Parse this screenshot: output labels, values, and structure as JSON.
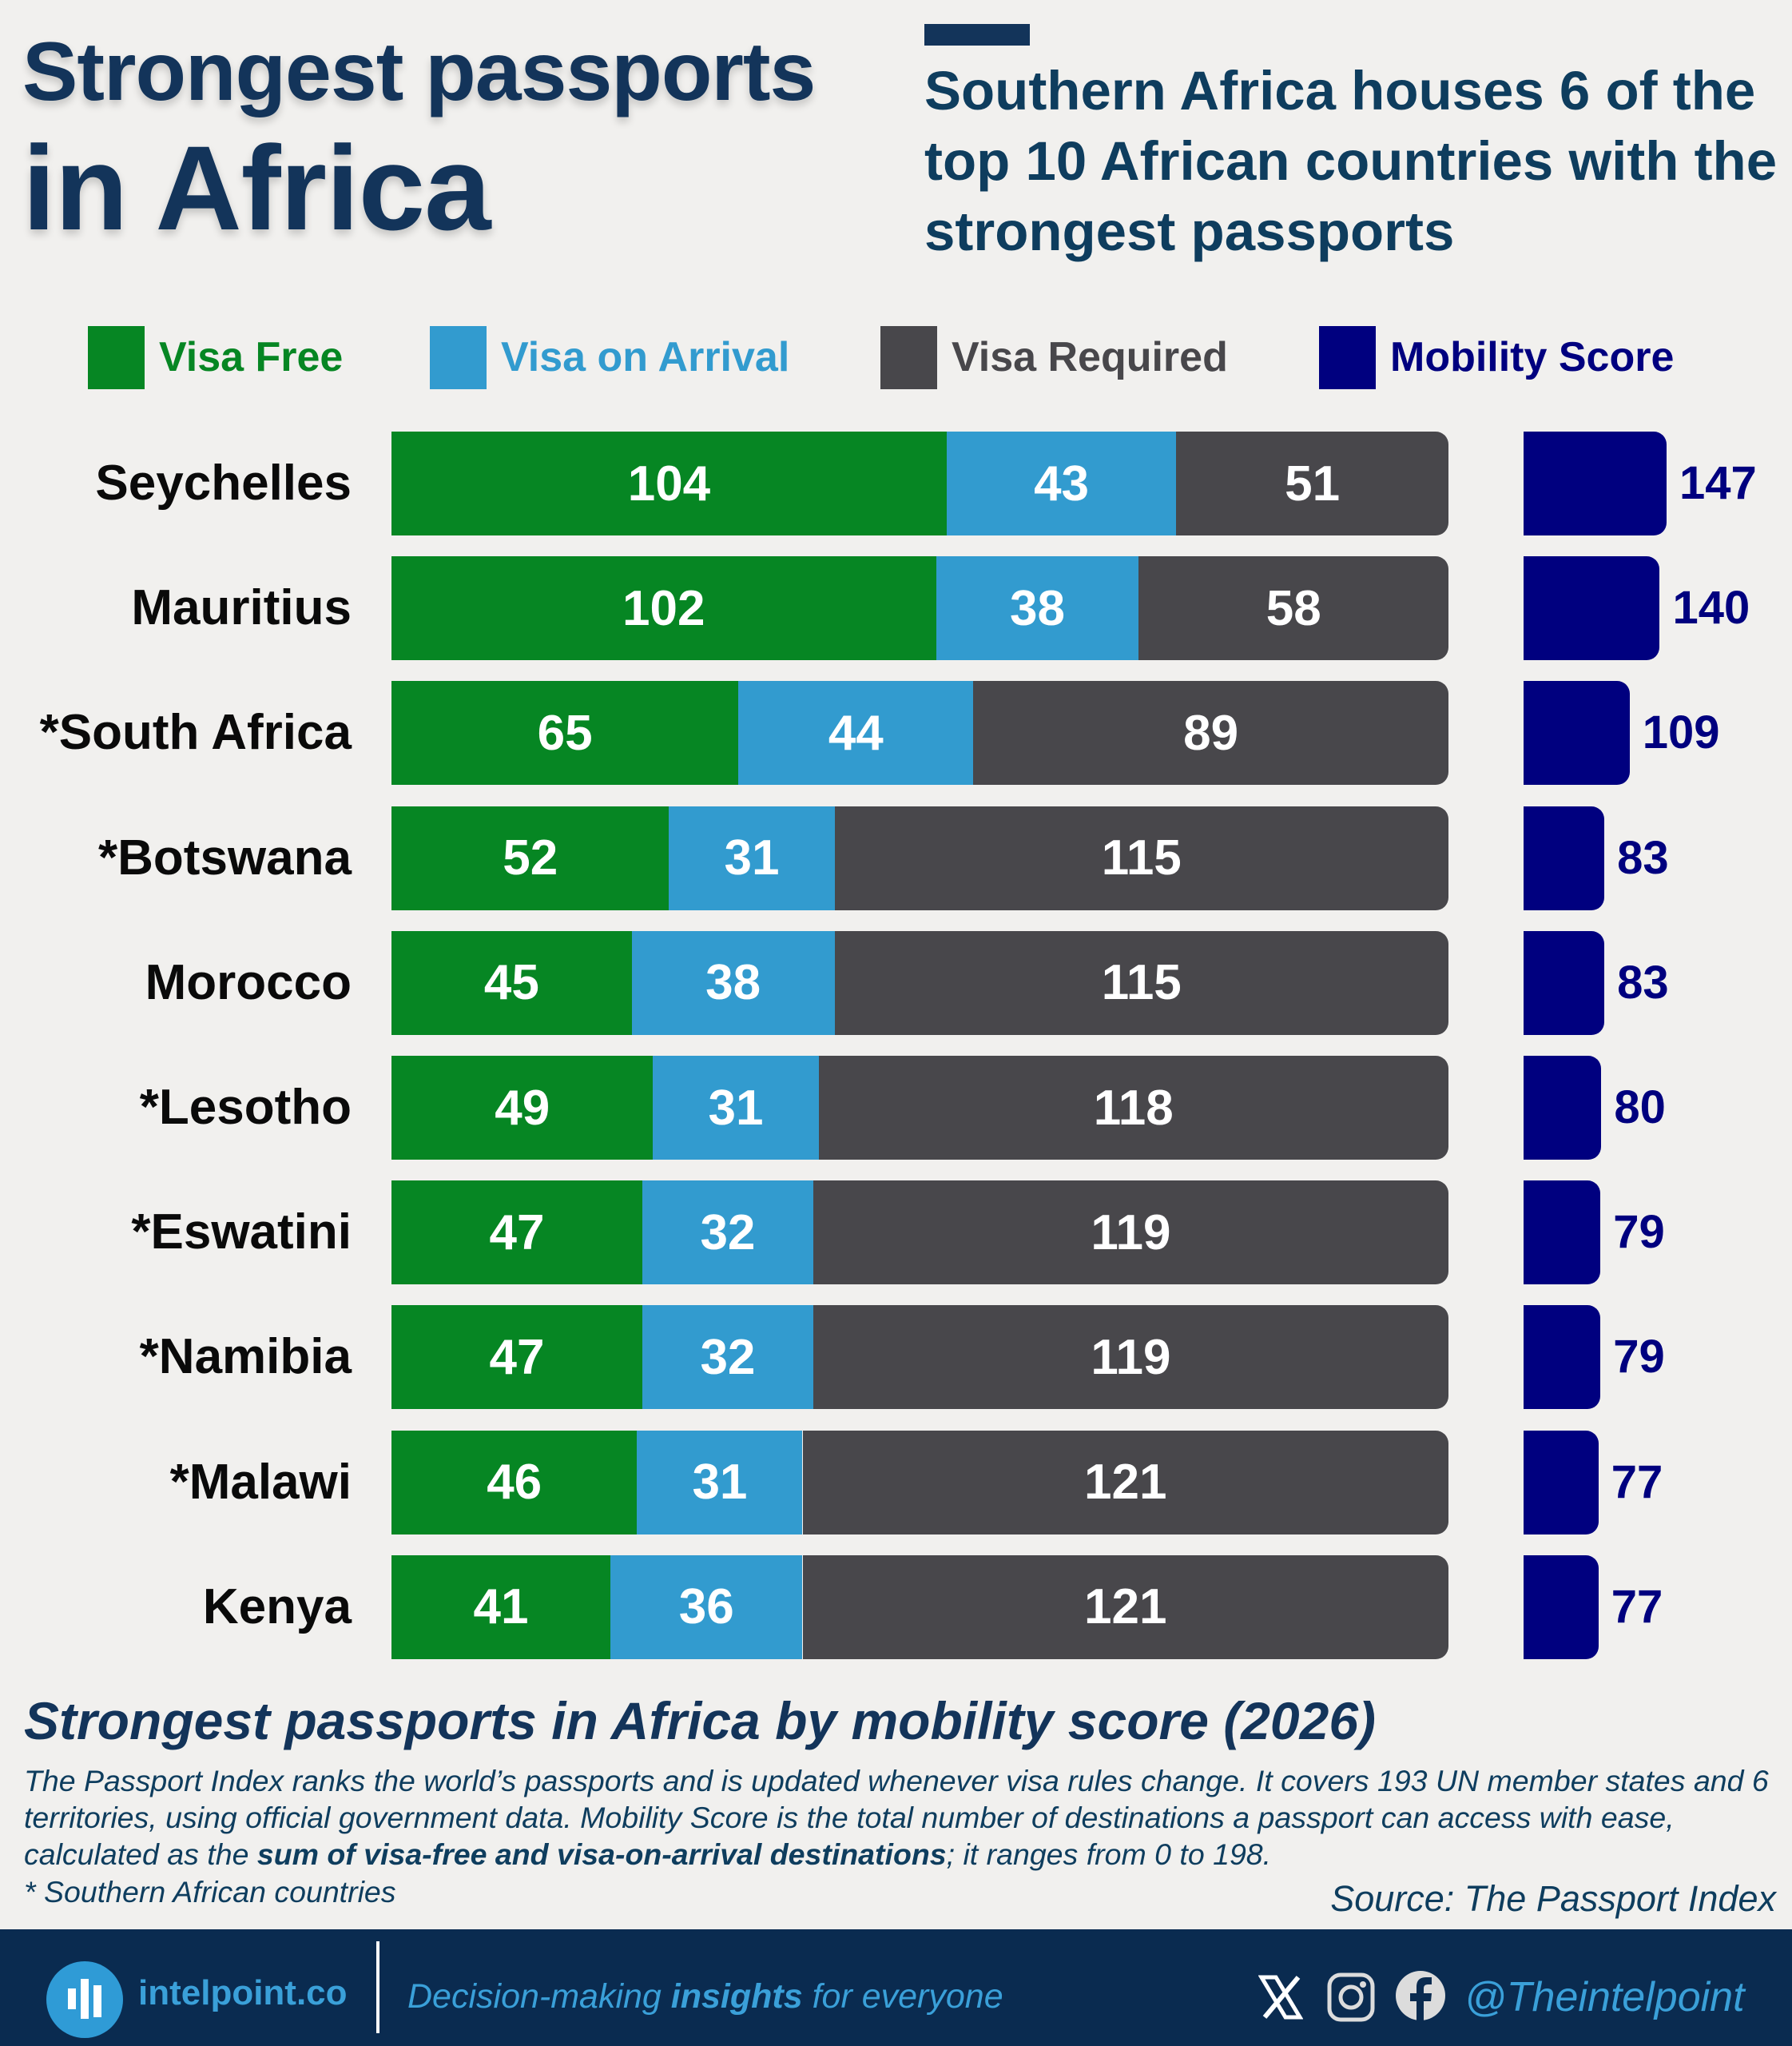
{
  "header": {
    "title_line1": "Strongest passports",
    "title_line2": "in Africa",
    "subtitle": "Southern Africa houses 6 of the top 10 African countries with the strongest passports"
  },
  "legend": [
    {
      "label": "Visa Free",
      "color": "#068623",
      "text_color": "#068623"
    },
    {
      "label": "Visa on Arrival",
      "color": "#329bcf",
      "text_color": "#329bcf"
    },
    {
      "label": "Visa Required",
      "color": "#48474b",
      "text_color": "#48474b"
    },
    {
      "label": "Mobility Score",
      "color": "#00007f",
      "text_color": "#00007f"
    }
  ],
  "chart_data": {
    "type": "bar",
    "orientation": "horizontal",
    "stacked": true,
    "title": "Strongest passports in Africa by mobility score (2026)",
    "categories": [
      "Seychelles",
      "Mauritius",
      "*South Africa",
      "*Botswana",
      "Morocco",
      "*Lesotho",
      "*Eswatini",
      "*Namibia",
      "*Malawi",
      "Kenya"
    ],
    "series": [
      {
        "name": "Visa Free",
        "color": "#068623",
        "values": [
          104,
          102,
          65,
          52,
          45,
          49,
          47,
          47,
          46,
          41
        ]
      },
      {
        "name": "Visa on Arrival",
        "color": "#329bcf",
        "values": [
          43,
          38,
          44,
          31,
          38,
          31,
          32,
          32,
          31,
          36
        ]
      },
      {
        "name": "Visa Required",
        "color": "#48474b",
        "values": [
          51,
          58,
          89,
          115,
          115,
          118,
          119,
          119,
          121,
          121
        ]
      }
    ],
    "mobility_score": {
      "name": "Mobility Score",
      "color": "#00007f",
      "values": [
        147,
        140,
        109,
        83,
        83,
        80,
        79,
        79,
        77,
        77
      ]
    },
    "xlim": [
      0,
      198
    ],
    "grid": false,
    "legend_position": "top"
  },
  "footer": {
    "title": "Strongest passports in Africa by mobility score (2026)",
    "body_part1": "The Passport Index ranks the world’s passports and is updated whenever visa rules change. It covers 193 UN member states and 6 territories, using official government data. Mobility Score is the total number of destinations a passport can access with ease, calculated as the ",
    "body_bold": "sum of visa-free and visa-on-arrival destinations",
    "body_part2": "; it ranges from 0 to 198.",
    "note": "* Southern African countries",
    "source": "Source: The Passport Index"
  },
  "banner": {
    "brand": "intelpoint.co",
    "tagline_part1": "Decision-making ",
    "tagline_bold": "insights",
    "tagline_part2": " for everyone",
    "handle": "@Theintelpoint",
    "icons": [
      "x-icon",
      "instagram-icon",
      "facebook-icon"
    ]
  }
}
